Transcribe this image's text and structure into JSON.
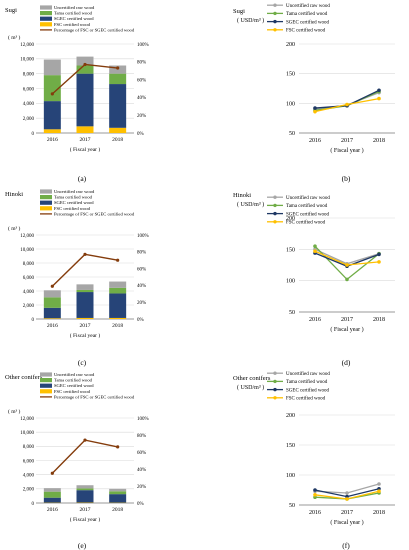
{
  "colors": {
    "uncertified": "#a6a6a6",
    "tama": "#70ad47",
    "sgec": "#264478",
    "fsc": "#ffc000",
    "pct": "#843c0c",
    "sgec_line": "#1f3864",
    "grid": "#d9d9d9",
    "axis": "#7f7f7f"
  },
  "chart_data": [
    {
      "id": "a",
      "type": "bar",
      "stacked": true,
      "panel_label": "(a)",
      "title": "Sugi",
      "ylabel": "( m³ )",
      "xlabel": "( Fiscal year )",
      "categories": [
        "2016",
        "2017",
        "2018"
      ],
      "ylim": [
        0,
        12000
      ],
      "yticks": [
        "0",
        "2,000",
        "4,000",
        "6,000",
        "8,000",
        "10,000",
        "12,000"
      ],
      "y2lim": [
        0,
        100
      ],
      "y2ticks": [
        "0%",
        "20%",
        "40%",
        "60%",
        "80%",
        "100%"
      ],
      "legend": [
        "Uncertified raw wood",
        "Tama certified wood",
        "SGEC certified wood",
        "FSC certified wood",
        "Percentage of FSC or SGEC certified wood"
      ],
      "series": [
        {
          "name": "FSC certified wood",
          "values": [
            500,
            900,
            700
          ]
        },
        {
          "name": "SGEC certified wood",
          "values": [
            3800,
            7100,
            5900
          ]
        },
        {
          "name": "Tama certified wood",
          "values": [
            3500,
            1100,
            1400
          ]
        },
        {
          "name": "Uncertified raw wood",
          "values": [
            2100,
            1200,
            1100
          ]
        }
      ],
      "line": {
        "name": "Percentage of FSC or SGEC certified wood",
        "values": [
          44,
          77,
          73
        ]
      }
    },
    {
      "id": "b",
      "type": "line",
      "panel_label": "(b)",
      "title": "Sugi",
      "ylabel": "( USD/m³ )",
      "xlabel": "( Fiscal year )",
      "x": [
        "2016",
        "2017",
        "2018"
      ],
      "ylim": [
        50,
        200
      ],
      "yticks": [
        "50",
        "100",
        "150",
        "200"
      ],
      "legend": [
        "Uncertified raw wood",
        "Tama certified wood",
        "SGEC certified wood",
        "FSC certified wood"
      ],
      "series": [
        {
          "name": "Uncertified raw wood",
          "values": [
            90,
            97,
            118
          ]
        },
        {
          "name": "Tama certified wood",
          "values": [
            88,
            96,
            120
          ]
        },
        {
          "name": "SGEC certified wood",
          "values": [
            92,
            96,
            122
          ]
        },
        {
          "name": "FSC certified wood",
          "values": [
            86,
            98,
            108
          ]
        }
      ]
    },
    {
      "id": "c",
      "type": "bar",
      "stacked": true,
      "panel_label": "(c)",
      "title": "Hinoki",
      "ylabel": "( m³ )",
      "xlabel": "( Fiscal year )",
      "categories": [
        "2016",
        "2017",
        "2018"
      ],
      "ylim": [
        0,
        12000
      ],
      "yticks": [
        "0",
        "2,000",
        "4,000",
        "6,000",
        "8,000",
        "10,000",
        "12,000"
      ],
      "y2lim": [
        0,
        100
      ],
      "y2ticks": [
        "0%",
        "20%",
        "40%",
        "60%",
        "80%",
        "100%"
      ],
      "legend": [
        "Uncertified raw wood",
        "Tama certified wood",
        "SGEC certified wood",
        "FSC certified wood",
        "Percentage of FSC or SGEC certified wood"
      ],
      "series": [
        {
          "name": "FSC certified wood",
          "values": [
            100,
            150,
            150
          ]
        },
        {
          "name": "SGEC certified wood",
          "values": [
            1500,
            3700,
            3500
          ]
        },
        {
          "name": "Tama certified wood",
          "values": [
            1500,
            300,
            800
          ]
        },
        {
          "name": "Uncertified raw wood",
          "values": [
            1000,
            800,
            900
          ]
        }
      ],
      "line": {
        "name": "Percentage of FSC or SGEC certified wood",
        "values": [
          39,
          77,
          70
        ]
      }
    },
    {
      "id": "d",
      "type": "line",
      "panel_label": "(d)",
      "title": "Hinoki",
      "ylabel": "( USD/m³ )",
      "xlabel": "( Fiscal year )",
      "x": [
        "2016",
        "2017",
        "2018"
      ],
      "ylim": [
        50,
        200
      ],
      "yticks": [
        "50",
        "100",
        "150",
        "200"
      ],
      "legend": [
        "Uncertified raw wood",
        "Tama certified wood",
        "SGEC certified wood",
        "FSC certified wood"
      ],
      "series": [
        {
          "name": "Uncertified raw wood",
          "values": [
            150,
            127,
            143
          ]
        },
        {
          "name": "Tama certified wood",
          "values": [
            155,
            102,
            143
          ]
        },
        {
          "name": "SGEC certified wood",
          "values": [
            144,
            123,
            142
          ]
        },
        {
          "name": "FSC certified wood",
          "values": [
            147,
            125,
            130
          ]
        }
      ]
    },
    {
      "id": "e",
      "type": "bar",
      "stacked": true,
      "panel_label": "(e)",
      "title": "Other conifers",
      "ylabel": "( m³ )",
      "xlabel": "( Fiscal year )",
      "categories": [
        "2016",
        "2017",
        "2018"
      ],
      "ylim": [
        0,
        12000
      ],
      "yticks": [
        "0",
        "2,000",
        "4,000",
        "6,000",
        "8,000",
        "10,000",
        "12,000"
      ],
      "y2lim": [
        0,
        100
      ],
      "y2ticks": [
        "0%",
        "20%",
        "40%",
        "60%",
        "80%",
        "100%"
      ],
      "legend": [
        "Uncertified raw wood",
        "Tama certified wood",
        "SGEC certified wood",
        "FSC certified wood",
        "Percentage of FSC or SGEC certified wood"
      ],
      "series": [
        {
          "name": "FSC certified wood",
          "values": [
            50,
            60,
            50
          ]
        },
        {
          "name": "SGEC certified wood",
          "values": [
            700,
            1750,
            1200
          ]
        },
        {
          "name": "Tama certified wood",
          "values": [
            850,
            250,
            400
          ]
        },
        {
          "name": "Uncertified raw wood",
          "values": [
            500,
            450,
            350
          ]
        }
      ],
      "line": {
        "name": "Percentage of FSC or SGEC certified wood",
        "values": [
          35,
          74,
          66
        ]
      }
    },
    {
      "id": "f",
      "type": "line",
      "panel_label": "(f)",
      "title": "Other conifers",
      "ylabel": "( USD/m³ )",
      "xlabel": "( Fiscal year )",
      "x": [
        "2016",
        "2017",
        "2018"
      ],
      "ylim": [
        50,
        200
      ],
      "yticks": [
        "50",
        "100",
        "150",
        "200"
      ],
      "legend": [
        "Uncertified raw wood",
        "Tama certified wood",
        "SGEC certified wood",
        "FSC certified wood"
      ],
      "series": [
        {
          "name": "Uncertified raw wood",
          "values": [
            73,
            70,
            85
          ]
        },
        {
          "name": "Tama certified wood",
          "values": [
            63,
            60,
            70
          ]
        },
        {
          "name": "SGEC certified wood",
          "values": [
            75,
            64,
            77
          ]
        },
        {
          "name": "FSC certified wood",
          "values": [
            67,
            60,
            73
          ]
        }
      ]
    }
  ]
}
